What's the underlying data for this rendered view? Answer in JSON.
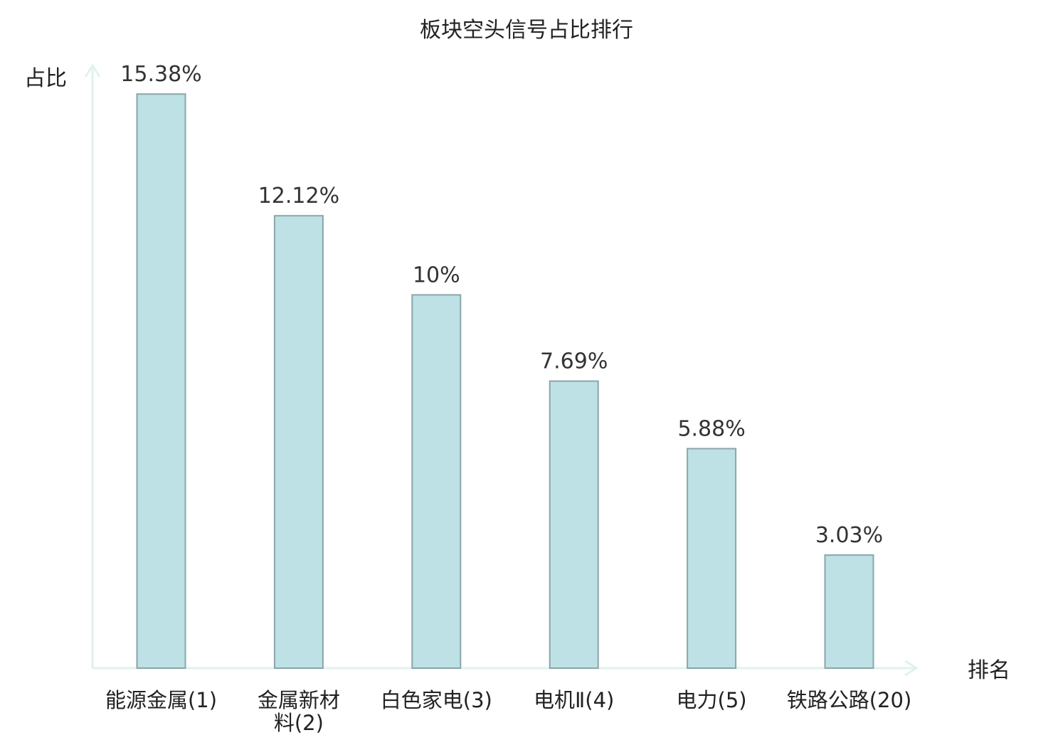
{
  "chart_data": {
    "type": "bar",
    "title": "板块空头信号占比排行",
    "ylabel": "占比",
    "xlabel": "排名",
    "categories": [
      {
        "name": "能源金属",
        "rank": "(1)",
        "lines": [
          "能源金属(1)"
        ]
      },
      {
        "name": "金属新材料",
        "rank": "(2)",
        "lines": [
          "金属新材",
          "料(2)"
        ]
      },
      {
        "name": "白色家电",
        "rank": "(3)",
        "lines": [
          "白色家电(3)"
        ]
      },
      {
        "name": "电机Ⅱ",
        "rank": "(4)",
        "lines": [
          "电机Ⅱ(4)"
        ]
      },
      {
        "name": "电力",
        "rank": "(5)",
        "lines": [
          "电力(5)"
        ]
      },
      {
        "name": "铁路公路",
        "rank": "(20)",
        "lines": [
          "铁路公路(20)"
        ],
        "highlight": true
      }
    ],
    "values": [
      15.38,
      12.12,
      10,
      7.69,
      5.88,
      3.03
    ],
    "value_labels": [
      "15.38%",
      "12.12%",
      "10%",
      "7.69%",
      "5.88%",
      "3.03%"
    ],
    "ylim": [
      0,
      17.9
    ],
    "grid": false,
    "colors": {
      "bar_fill": "#bde1e4",
      "bar_stroke": "#8aa6aa",
      "axis": "#e0f2ef",
      "text": "#222222",
      "value_text": "#333333",
      "highlight": "#e8191b"
    }
  }
}
